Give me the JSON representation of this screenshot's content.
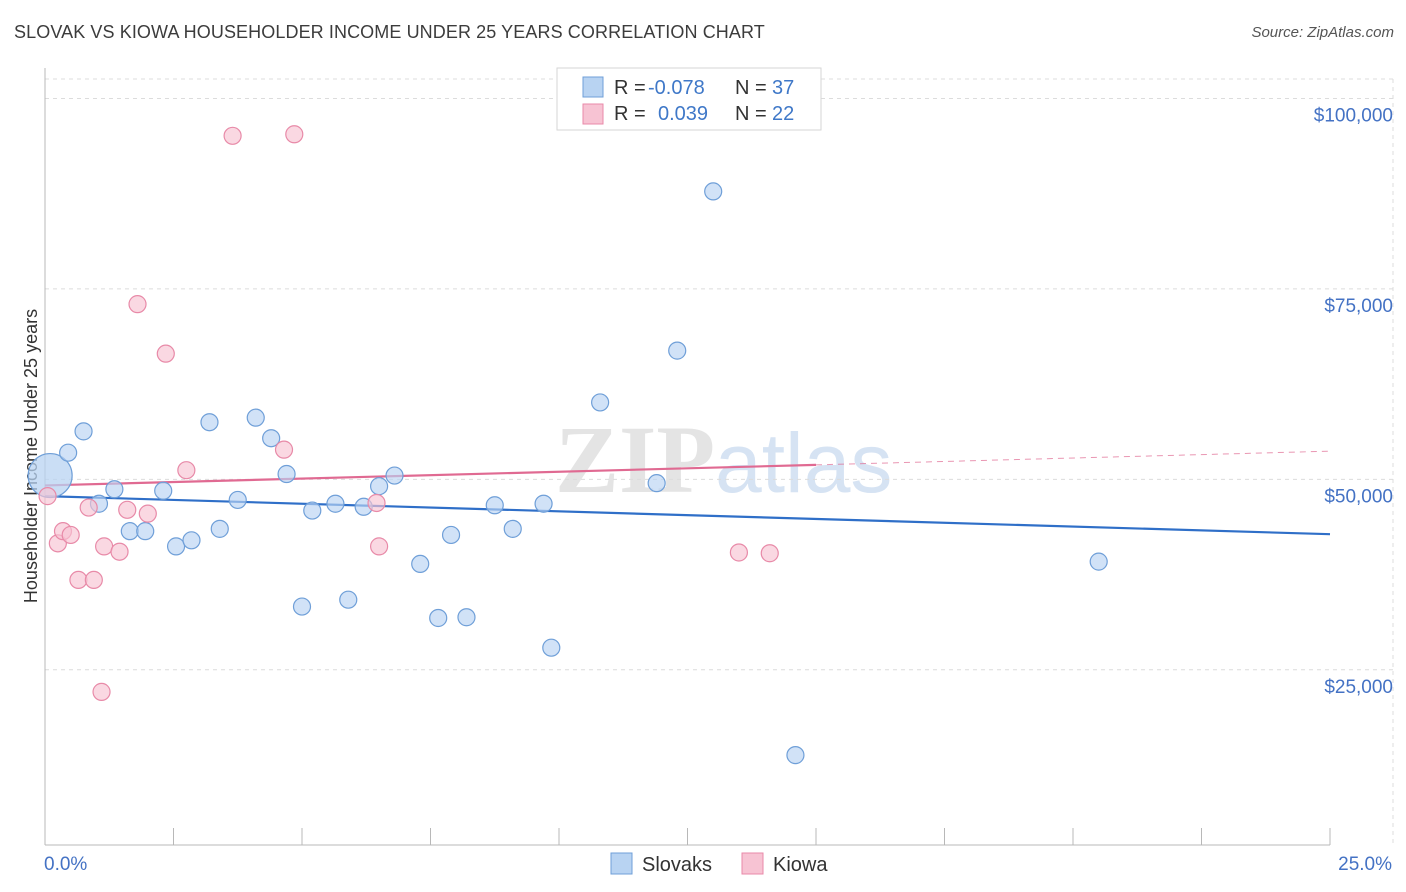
{
  "header": {
    "title": "SLOVAK VS KIOWA HOUSEHOLDER INCOME UNDER 25 YEARS CORRELATION CHART",
    "source": "Source: ZipAtlas.com"
  },
  "watermark": {
    "zip": "ZIP",
    "atlas": "atlas"
  },
  "colors": {
    "slovaks_fill": "#b8d3f2",
    "slovaks_stroke": "#6f9fd8",
    "slovaks_line": "#2f6fc8",
    "kiowa_fill": "#f7c3d3",
    "kiowa_stroke": "#e88aa8",
    "kiowa_line": "#e06a92",
    "value_blue": "#3f78c8",
    "grid": "#dcdcdc"
  },
  "legend": {
    "rows": [
      {
        "r_label": "R =",
        "r_value": "-0.078",
        "n_label": "N =",
        "n_value": "37"
      },
      {
        "r_label": "R =",
        "r_value": "0.039",
        "n_label": "N =",
        "n_value": "22"
      }
    ]
  },
  "chart_data": {
    "type": "scatter",
    "title": "SLOVAK VS KIOWA HOUSEHOLDER INCOME UNDER 25 YEARS CORRELATION CHART",
    "xlabel": "",
    "ylabel": "Householder Income Under 25 years",
    "xlim": [
      0,
      25
    ],
    "ylim": [
      2000,
      104000
    ],
    "x_tick_labels": [
      "0.0%",
      "25.0%"
    ],
    "y_ticks": [
      25000,
      50000,
      75000,
      100000
    ],
    "y_tick_labels": [
      "$25,000",
      "$50,000",
      "$75,000",
      "$100,000"
    ],
    "grid": true,
    "series": [
      {
        "name": "Slovaks",
        "r": -0.078,
        "n": 37,
        "trend": {
          "x": [
            0,
            25
          ],
          "y": [
            47800,
            42800
          ]
        },
        "points": [
          {
            "x": 0.1,
            "y": 50500,
            "big": true
          },
          {
            "x": 0.45,
            "y": 53500
          },
          {
            "x": 0.75,
            "y": 56300
          },
          {
            "x": 1.05,
            "y": 46800
          },
          {
            "x": 1.35,
            "y": 48700
          },
          {
            "x": 1.65,
            "y": 43200
          },
          {
            "x": 1.95,
            "y": 43200
          },
          {
            "x": 2.3,
            "y": 48500
          },
          {
            "x": 2.55,
            "y": 41200
          },
          {
            "x": 2.85,
            "y": 42000
          },
          {
            "x": 3.2,
            "y": 57500
          },
          {
            "x": 3.4,
            "y": 43500
          },
          {
            "x": 3.75,
            "y": 47300
          },
          {
            "x": 4.1,
            "y": 58100
          },
          {
            "x": 4.4,
            "y": 55400
          },
          {
            "x": 4.7,
            "y": 50700
          },
          {
            "x": 5.0,
            "y": 33300
          },
          {
            "x": 5.2,
            "y": 45900
          },
          {
            "x": 5.65,
            "y": 46800
          },
          {
            "x": 5.9,
            "y": 34200
          },
          {
            "x": 6.2,
            "y": 46400
          },
          {
            "x": 6.5,
            "y": 49100
          },
          {
            "x": 6.8,
            "y": 50500
          },
          {
            "x": 7.3,
            "y": 38900
          },
          {
            "x": 7.65,
            "y": 31800
          },
          {
            "x": 7.9,
            "y": 42700
          },
          {
            "x": 8.2,
            "y": 31900
          },
          {
            "x": 8.75,
            "y": 46600
          },
          {
            "x": 9.1,
            "y": 43500
          },
          {
            "x": 9.7,
            "y": 46800
          },
          {
            "x": 9.85,
            "y": 27900
          },
          {
            "x": 10.8,
            "y": 60100
          },
          {
            "x": 11.9,
            "y": 49500
          },
          {
            "x": 12.3,
            "y": 66900
          },
          {
            "x": 13.0,
            "y": 87800
          },
          {
            "x": 14.6,
            "y": 13800
          },
          {
            "x": 20.5,
            "y": 39200
          }
        ]
      },
      {
        "name": "Kiowa",
        "r": 0.039,
        "n": 22,
        "trend": {
          "x": [
            0,
            15
          ],
          "y": [
            49200,
            51900
          ]
        },
        "trend_dashed": {
          "x": [
            15,
            25
          ],
          "y": [
            51900,
            53700
          ]
        },
        "points": [
          {
            "x": 0.05,
            "y": 47800
          },
          {
            "x": 0.25,
            "y": 41600
          },
          {
            "x": 0.35,
            "y": 43200
          },
          {
            "x": 0.5,
            "y": 42700
          },
          {
            "x": 0.65,
            "y": 36800
          },
          {
            "x": 0.85,
            "y": 46300
          },
          {
            "x": 0.95,
            "y": 36800
          },
          {
            "x": 1.1,
            "y": 22100
          },
          {
            "x": 1.15,
            "y": 41200
          },
          {
            "x": 1.45,
            "y": 40500
          },
          {
            "x": 1.6,
            "y": 46000
          },
          {
            "x": 1.8,
            "y": 73000
          },
          {
            "x": 2.0,
            "y": 45500
          },
          {
            "x": 2.35,
            "y": 66500
          },
          {
            "x": 2.75,
            "y": 51200
          },
          {
            "x": 3.65,
            "y": 95100
          },
          {
            "x": 4.65,
            "y": 53900
          },
          {
            "x": 4.85,
            "y": 95300
          },
          {
            "x": 6.45,
            "y": 46900
          },
          {
            "x": 6.5,
            "y": 41200
          },
          {
            "x": 13.5,
            "y": 40400
          },
          {
            "x": 14.1,
            "y": 40300
          }
        ]
      }
    ]
  },
  "bottom_legend": {
    "items": [
      "Slovaks",
      "Kiowa"
    ]
  }
}
